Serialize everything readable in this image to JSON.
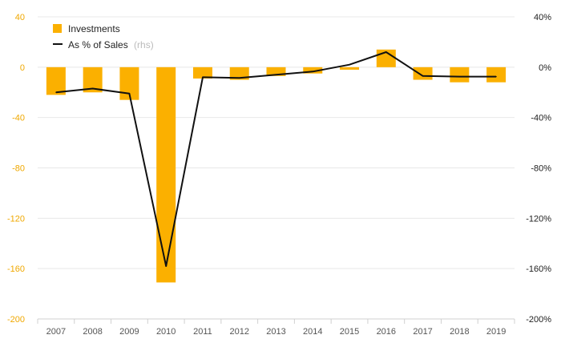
{
  "chart_data": {
    "type": "bar",
    "categories": [
      "2007",
      "2008",
      "2009",
      "2010",
      "2011",
      "2012",
      "2013",
      "2014",
      "2015",
      "2016",
      "2017",
      "2018",
      "2019"
    ],
    "series": [
      {
        "name": "Investments",
        "type": "bar",
        "axis": "left",
        "values": [
          -22,
          -20,
          -26,
          -171,
          -9,
          -10,
          -7,
          -5,
          -2,
          14,
          -10,
          -12,
          -12
        ]
      },
      {
        "name": "As % of Sales",
        "type": "line",
        "axis": "right",
        "values": [
          -20,
          -17,
          -21,
          -158,
          -8,
          -8.5,
          -6,
          -3.5,
          2,
          12,
          -7,
          -7.5,
          -7.5
        ]
      }
    ],
    "legend": [
      {
        "label": "Investments",
        "sub": ""
      },
      {
        "label": "As % of Sales",
        "sub": "(rhs)"
      }
    ],
    "legend_position": "top-left",
    "yaxis_left": {
      "min": -200,
      "max": 40,
      "ticks": [
        "40",
        "0",
        "-40",
        "-80",
        "-120",
        "-160",
        "-200"
      ]
    },
    "yaxis_right": {
      "min": -200,
      "max": 40,
      "ticks": [
        "40%",
        "0%",
        "-40%",
        "-80%",
        "-120%",
        "-160%",
        "-200%"
      ]
    },
    "grid": true,
    "colors": {
      "bar": "#fbb000",
      "line": "#111111",
      "left_ticks": "#f0a800",
      "grid": "#e8e8e8"
    }
  }
}
